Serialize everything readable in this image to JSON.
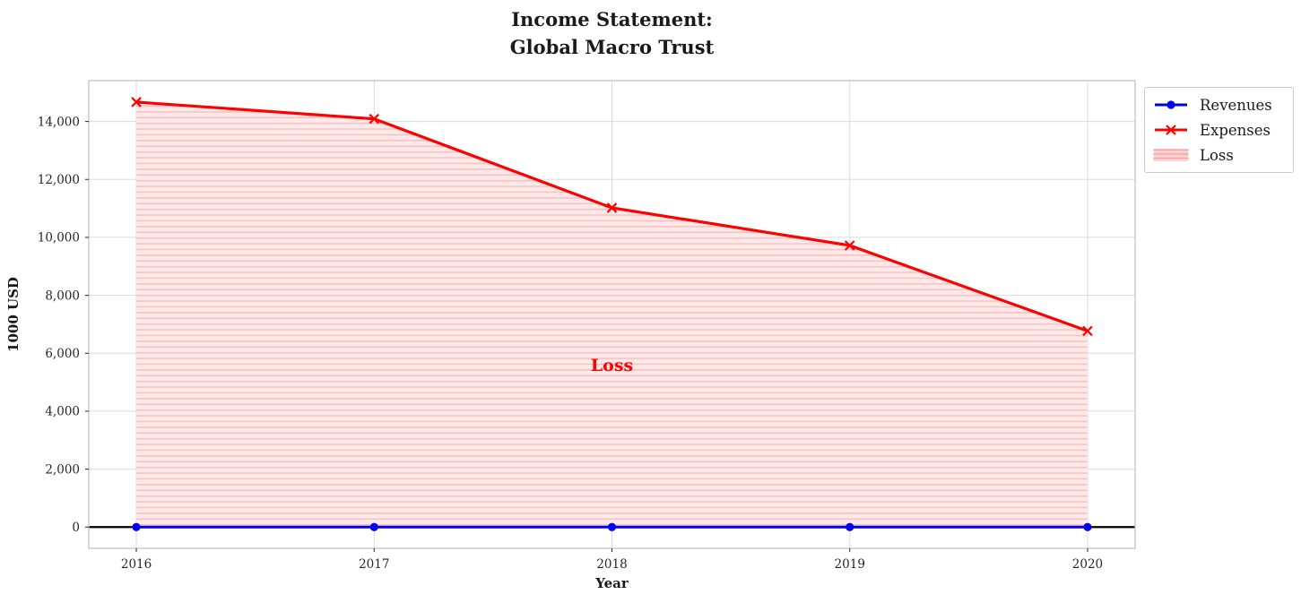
{
  "chart_data": {
    "type": "line",
    "title": "Income Statement:\nGlobal Macro Trust",
    "xlabel": "Year",
    "ylabel": "1000 USD",
    "x": [
      2016,
      2017,
      2018,
      2019,
      2020
    ],
    "series": [
      {
        "name": "Revenues",
        "marker": "circle",
        "color": "#0000ee",
        "values": [
          0,
          0,
          0,
          0,
          0
        ]
      },
      {
        "name": "Expenses",
        "marker": "x",
        "color": "#ff0000",
        "values": [
          14670,
          14090,
          11020,
          9720,
          6770
        ]
      }
    ],
    "loss_area": {
      "label": "Loss",
      "between": [
        "Expenses",
        "Revenues"
      ],
      "fill": "#ffe9e9",
      "hatch_color": "#f6c2c2",
      "hatch": "horizontal"
    },
    "annotation": {
      "text": "Loss",
      "x": 2018,
      "y": 5575,
      "color": "#ff0000"
    },
    "axhline": {
      "y": 0,
      "color": "#000000"
    },
    "xlim": [
      2015.8,
      2020.2
    ],
    "ylim": [
      -734,
      15410
    ],
    "xticks": [
      2016,
      2017,
      2018,
      2019,
      2020
    ],
    "xtick_labels": [
      "2016",
      "2017",
      "2018",
      "2019",
      "2020"
    ],
    "yticks": [
      0,
      2000,
      4000,
      6000,
      8000,
      10000,
      12000,
      14000
    ],
    "ytick_labels": [
      "0",
      "2,000",
      "4,000",
      "6,000",
      "8,000",
      "10,000",
      "12,000",
      "14,000"
    ],
    "grid": true,
    "legend_position": "outside-top-right",
    "colors": {
      "grid": "#dcdcdc",
      "spine": "#c3c3c3",
      "tick_text": "#262626",
      "text": "#1a1a1a",
      "legend_hatch_fill": "#fbd2d2",
      "legend_hatch_line": "#f3a6a6"
    }
  },
  "legend": {
    "items": [
      {
        "label": "Revenues"
      },
      {
        "label": "Expenses"
      },
      {
        "label": "Loss"
      }
    ]
  }
}
